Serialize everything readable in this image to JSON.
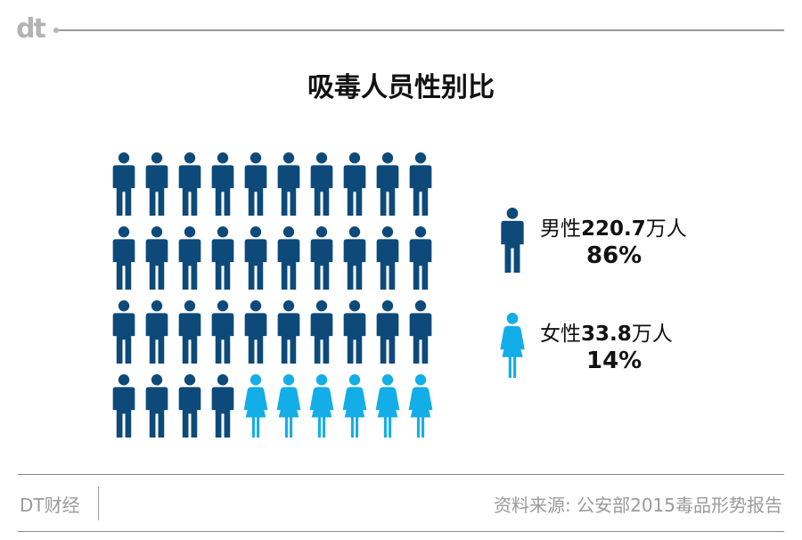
{
  "header": {
    "logo_text": "dt"
  },
  "title": "吸毒人员性别比",
  "colors": {
    "male": "#0d4a7a",
    "female": "#13aee8",
    "rule": "#9a9a9a"
  },
  "chart_data": {
    "type": "pictogram",
    "title": "吸毒人员性别比",
    "total_icons": 40,
    "columns": 10,
    "series": [
      {
        "name": "男性",
        "value": 220.7,
        "unit": "万人",
        "percent": 86,
        "icons": 34,
        "icon": "male-person-icon"
      },
      {
        "name": "女性",
        "value": 33.8,
        "unit": "万人",
        "percent": 14,
        "icons": 6,
        "icon": "female-person-icon"
      }
    ]
  },
  "legend": {
    "male": {
      "gender": "男性",
      "value": "220.7",
      "unit": "万人",
      "percent": "86%"
    },
    "female": {
      "gender": "女性",
      "value": "33.8",
      "unit": "万人",
      "percent": "14%"
    }
  },
  "footer": {
    "brand": "DT财经",
    "source": "资料来源: 公安部2015毒品形势报告"
  }
}
